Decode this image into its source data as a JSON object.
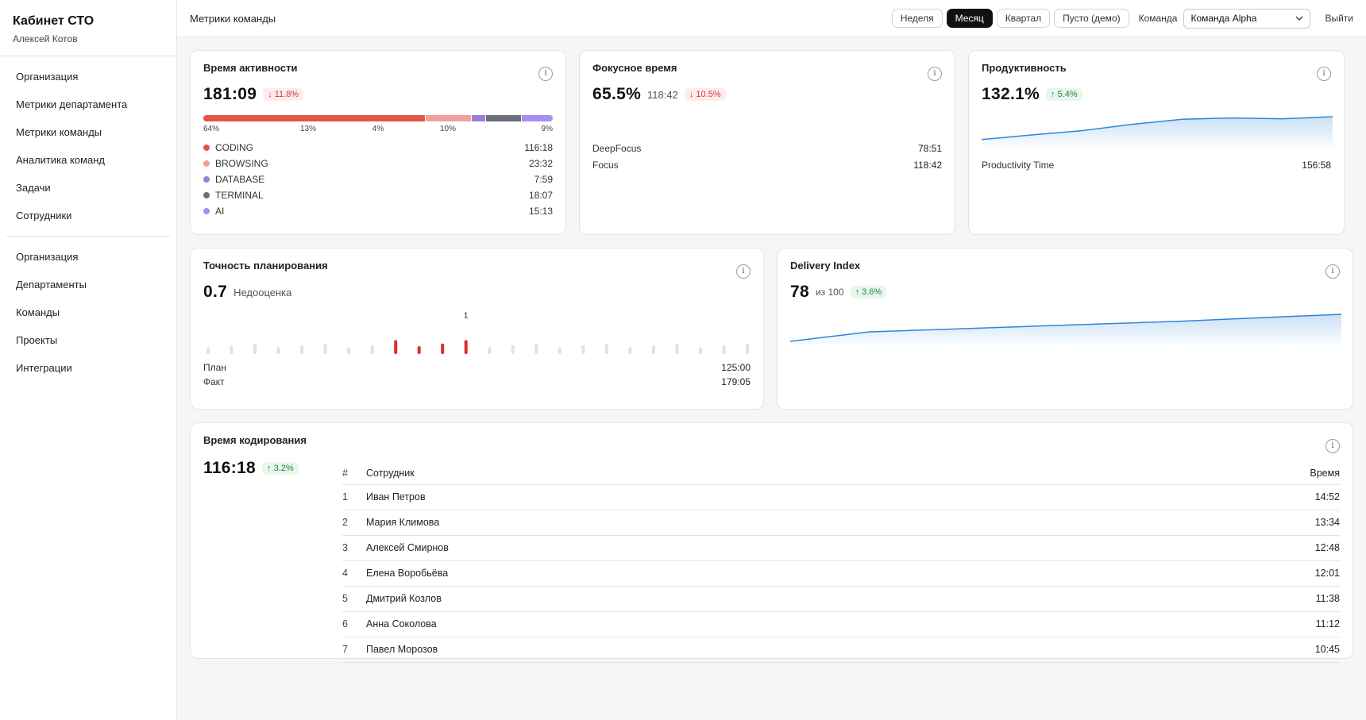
{
  "sidebar": {
    "title": "Кабинет СТО",
    "user": "Алексей Котов",
    "group1": [
      "Организация",
      "Метрики департамента",
      "Метрики команды",
      "Аналитика команд",
      "Задачи",
      "Сотрудники"
    ],
    "group2": [
      "Организация",
      "Департаменты",
      "Команды",
      "Проекты",
      "Интеграции"
    ]
  },
  "topbar": {
    "title": "Метрики команды",
    "periods": [
      "Неделя",
      "Месяц",
      "Квартал",
      "Пусто (демо)"
    ],
    "active_period": "Месяц",
    "team_label": "Команда",
    "team_value": "Команда Alpha",
    "logout": "Выйти"
  },
  "activity": {
    "title": "Время активности",
    "value": "181:09",
    "delta": "↓ 11.8%",
    "segments": [
      {
        "pct": 64,
        "label": "64%",
        "color": "#e0574a"
      },
      {
        "pct": 13,
        "label": "13%",
        "color": "#f0a19b"
      },
      {
        "pct": 4,
        "label": "4%",
        "color": "#9b7fd6"
      },
      {
        "pct": 10,
        "label": "10%",
        "color": "#6b6f7a"
      },
      {
        "pct": 9,
        "label": "9%",
        "color": "#a98ef0"
      }
    ],
    "items": [
      {
        "name": "CODING",
        "value": "116:18",
        "color": "#e0574a"
      },
      {
        "name": "BROWSING",
        "value": "23:32",
        "color": "#f0a19b"
      },
      {
        "name": "DATABASE",
        "value": "7:59",
        "color": "#9b7fd6"
      },
      {
        "name": "TERMINAL",
        "value": "18:07",
        "color": "#6b6f7a"
      },
      {
        "name": "AI",
        "value": "15:13",
        "color": "#a98ef0"
      }
    ]
  },
  "focus": {
    "title": "Фокусное время",
    "value": "65.5%",
    "sub": "118:42",
    "delta": "↓ 10.5%",
    "items": [
      {
        "name": "DeepFocus",
        "value": "78:51"
      },
      {
        "name": "Focus",
        "value": "118:42"
      }
    ]
  },
  "productivity": {
    "title": "Продуктивность",
    "value": "132.1%",
    "delta": "↑ 5.4%",
    "series": [
      0.1,
      0.28,
      0.45,
      0.7,
      0.9,
      0.95,
      0.92,
      1.0
    ],
    "item_name": "Productivity Time",
    "item_value": "156:58"
  },
  "planning": {
    "title": "Точность планирования",
    "value": "0.7",
    "sub": "Недооценка",
    "marker_label": "1",
    "bars": [
      0.4,
      0.5,
      0.6,
      0.4,
      0.5,
      0.6,
      0.4,
      0.5,
      0.8,
      0.45,
      0.6,
      0.8,
      0.4,
      0.5,
      0.6,
      0.4,
      0.5,
      0.6,
      0.4,
      0.5,
      0.6,
      0.4,
      0.5,
      0.6
    ],
    "highlight": [
      8,
      9,
      10,
      11
    ],
    "plan_label": "План",
    "plan_value": "125:00",
    "fact_label": "Факт",
    "fact_value": "179:05"
  },
  "delivery": {
    "title": "Delivery Index",
    "value": "78",
    "sub": "из 100",
    "delta": "↑ 3.6%",
    "series": [
      0.0,
      0.35,
      0.45,
      0.55,
      0.65,
      0.75,
      0.88,
      1.0
    ]
  },
  "coding": {
    "title": "Время кодирования",
    "value": "116:18",
    "delta": "↑ 3.2%",
    "columns": {
      "num": "#",
      "name": "Сотрудник",
      "time": "Время"
    },
    "rows": [
      {
        "num": "1",
        "name": "Иван Петров",
        "time": "14:52"
      },
      {
        "num": "2",
        "name": "Мария Климова",
        "time": "13:34"
      },
      {
        "num": "3",
        "name": "Алексей Смирнов",
        "time": "12:48"
      },
      {
        "num": "4",
        "name": "Елена Воробьёва",
        "time": "12:01"
      },
      {
        "num": "5",
        "name": "Дмитрий Козлов",
        "time": "11:38"
      },
      {
        "num": "6",
        "name": "Анна Соколова",
        "time": "11:12"
      },
      {
        "num": "7",
        "name": "Павел Морозов",
        "time": "10:45"
      }
    ]
  },
  "colors": {
    "accent_line": "#2f86d6",
    "bar_default": "#e2e2e4",
    "bar_highlight": "#d9302e"
  }
}
